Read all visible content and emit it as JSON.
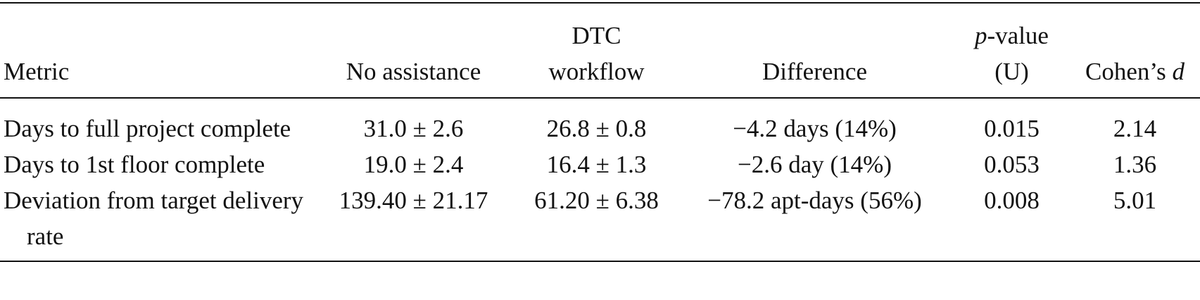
{
  "table": {
    "header": [
      [
        "Metric"
      ],
      [
        "No assistance"
      ],
      [
        "DTC",
        "workflow"
      ],
      [
        "Difference"
      ],
      [
        [
          "p",
          "-value"
        ],
        "(U)"
      ],
      [
        [
          "Cohen’s ",
          "d"
        ]
      ]
    ],
    "rows": [
      [
        "Days to full project complete",
        "31.0 ± 2.6",
        "26.8 ± 0.8",
        "−4.2 days (14%)",
        "0.015",
        "2.14"
      ],
      [
        "Days to 1st floor complete",
        "19.0 ± 2.4",
        "16.4 ± 1.3",
        "−2.6 day (14%)",
        "0.053",
        "1.36"
      ],
      [
        "Deviation from target delivery rate",
        "139.40 ± 21.17",
        "61.20 ± 6.38",
        "−78.2 apt-days (56%)",
        "0.008",
        "5.01"
      ]
    ]
  }
}
